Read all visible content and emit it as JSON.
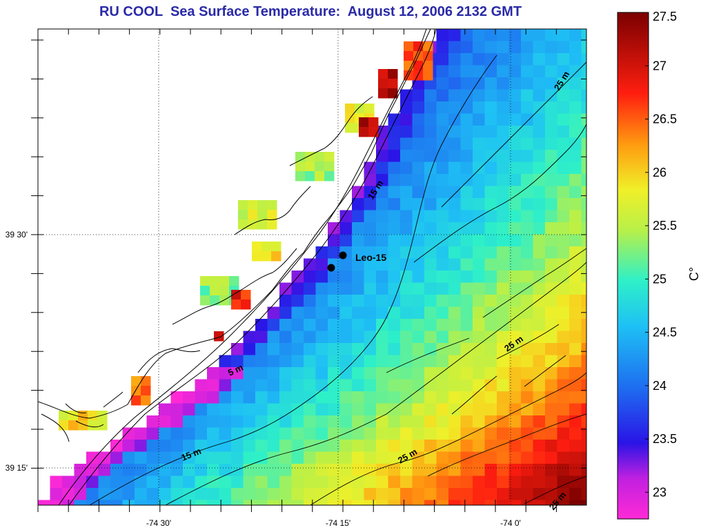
{
  "title": "RU COOL  Sea Surface Temperature:  August 12, 2006 2132 GMT",
  "axes": {
    "x_ticks": [
      "-74 30'",
      "-74 15'",
      "-74 0'"
    ],
    "y_ticks": [
      "39 30'",
      "39 15'"
    ]
  },
  "colorbar": {
    "unit": "C°",
    "min": 22.75,
    "max": 27.5,
    "ticks": [
      "27.5",
      "27",
      "26.5",
      "26",
      "25.5",
      "25",
      "24.5",
      "24",
      "23.5",
      "23"
    ],
    "tick_values": [
      27.5,
      27,
      26.5,
      26,
      25.5,
      25,
      24.5,
      24,
      23.5,
      23
    ]
  },
  "station": {
    "label": "Leo-15"
  },
  "contour_labels": [
    "25 m",
    "15 m",
    "5 m",
    "15 m",
    "25 m",
    "25 m",
    "25 m"
  ],
  "colors": {
    "title": "#2a2aa8",
    "land": "#ffffff",
    "cold": "#ff2ad6",
    "warm": "#8b0000"
  }
}
